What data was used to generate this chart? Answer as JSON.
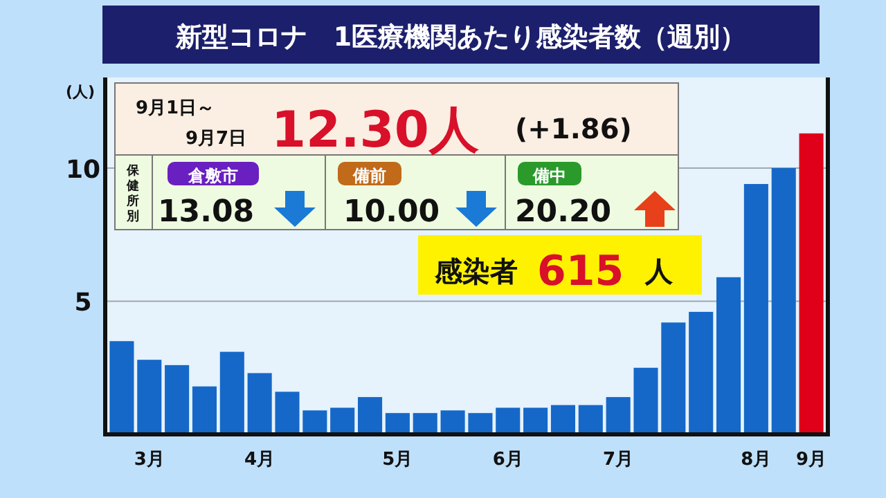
{
  "chart_data": {
    "type": "bar",
    "title": "新型コロナ　1医療機関あたり感染者数（週別）",
    "ylabel": "(人)",
    "categories": [
      null,
      "3月",
      null,
      null,
      null,
      "4月",
      null,
      null,
      null,
      null,
      "5月",
      null,
      null,
      null,
      "6月",
      null,
      null,
      null,
      "7月",
      null,
      null,
      null,
      null,
      "8月",
      null,
      "9月"
    ],
    "values": [
      3.5,
      2.8,
      2.6,
      1.8,
      3.1,
      2.3,
      1.6,
      0.9,
      1.0,
      1.4,
      0.8,
      0.8,
      0.9,
      0.8,
      1.0,
      1.0,
      1.1,
      1.1,
      1.4,
      2.5,
      4.2,
      4.6,
      5.9,
      9.4,
      10.0,
      11.3
    ],
    "colors": [
      "#1568c8",
      "#1568c8",
      "#1568c8",
      "#1568c8",
      "#1568c8",
      "#1568c8",
      "#1568c8",
      "#1568c8",
      "#1568c8",
      "#1568c8",
      "#1568c8",
      "#1568c8",
      "#1568c8",
      "#1568c8",
      "#1568c8",
      "#1568c8",
      "#1568c8",
      "#1568c8",
      "#1568c8",
      "#1568c8",
      "#1568c8",
      "#1568c8",
      "#1568c8",
      "#1568c8",
      "#1568c8",
      "#e0001a"
    ],
    "ylim": [
      0,
      13.4
    ],
    "yticks": [
      5,
      10
    ],
    "grid": "y",
    "annotations": [
      "9月1日～",
      "9月7日",
      "12.30人",
      "(+1.86)",
      "保健所別",
      "倉敷市",
      "13.08",
      "備前",
      "10.00",
      "備中",
      "20.20",
      "感染者",
      "615",
      "人"
    ]
  }
}
